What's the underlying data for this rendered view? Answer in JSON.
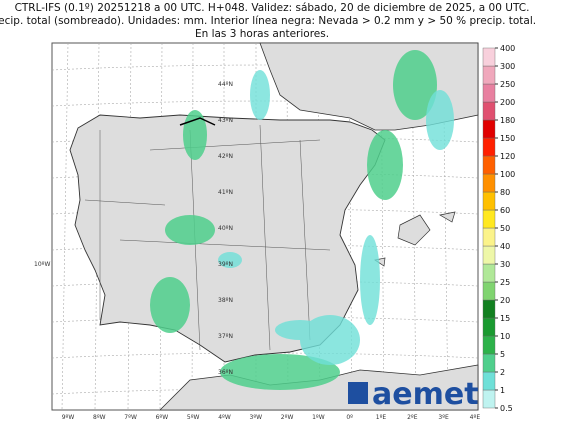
{
  "header": {
    "lines": [
      "CTRL-IFS (0.1º) 20251218 a 00 UTC. H+048. Validez: sábado, 20 de diciembre de 2025, a 00 UTC.",
      "Precip. total (sombreado). Unidades: mm. Interior línea negra: Nevada > 0.2 mm y > 50 % precip. total.",
      "En las 3 horas anteriores."
    ]
  },
  "map": {
    "lat_labels": [
      "44ºN",
      "43ºN",
      "42ºN",
      "41ºN",
      "40ºN",
      "39ºN",
      "38ºN",
      "37ºN",
      "36ºN"
    ],
    "lon_labels": [
      "9ºW",
      "8ºW",
      "7ºW",
      "6ºW",
      "5ºW",
      "4ºW",
      "3ºW",
      "2ºW",
      "1ºW",
      "0º",
      "1ºE",
      "2ºE",
      "3ºE",
      "4ºE"
    ],
    "side_label": "10ºW"
  },
  "legend": {
    "levels": [
      0.5,
      1,
      2,
      5,
      10,
      15,
      20,
      25,
      30,
      40,
      50,
      60,
      80,
      100,
      120,
      150,
      180,
      200,
      250,
      300,
      400
    ],
    "colors": [
      "#bff3f0",
      "#6fe0d8",
      "#4fcf8c",
      "#2db24a",
      "#1a9a30",
      "#128020",
      "#80d470",
      "#b0e898",
      "#eef7a8",
      "#fbf38a",
      "#ffe820",
      "#ffc000",
      "#ff9000",
      "#ff6000",
      "#ff2000",
      "#e00000",
      "#e05070",
      "#e880a0",
      "#f0a8bc",
      "#f8d0dc"
    ]
  },
  "logo": "aemet"
}
